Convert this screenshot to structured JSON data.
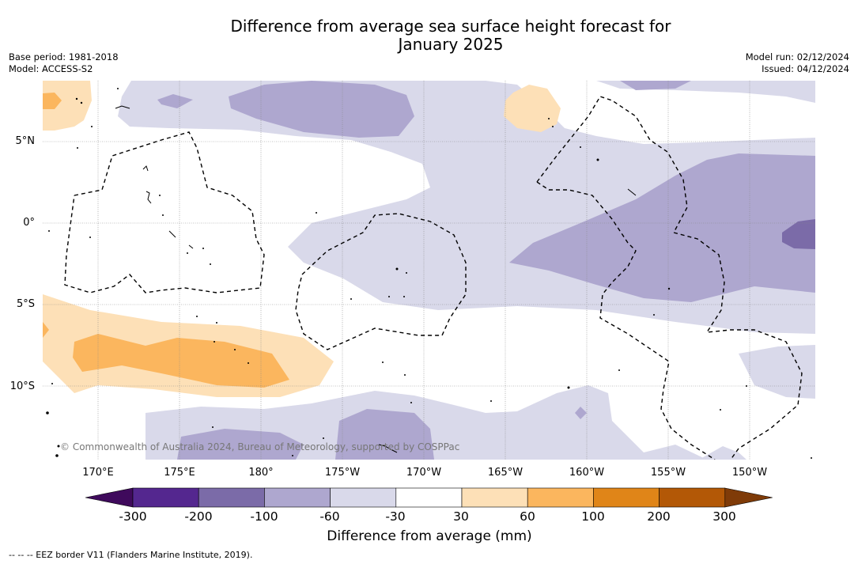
{
  "title": {
    "line1": "Difference from average sea surface height forecast for",
    "line2": "January 2025"
  },
  "meta": {
    "base_period": "Base period: 1981-2018",
    "model": "Model: ACCESS-S2",
    "model_run": "Model run: 02/12/2024",
    "issued": "Issued: 04/12/2024"
  },
  "axes": {
    "lat_labels": [
      "5°N",
      "0°",
      "5°S",
      "10°S"
    ],
    "lon_labels": [
      "170°E",
      "175°E",
      "180°",
      "175°W",
      "170°W",
      "165°W",
      "160°W",
      "155°W",
      "150°W"
    ]
  },
  "colorbar": {
    "ticks": [
      "-300",
      "-200",
      "-100",
      "-60",
      "-30",
      "30",
      "60",
      "100",
      "200",
      "300"
    ],
    "label": "Difference from average (mm)",
    "colors": [
      "#3f0a5c",
      "#54278f",
      "#7b6ba8",
      "#aea7cf",
      "#d9d9ea",
      "#ffffff",
      "#fde0b7",
      "#fbb65e",
      "#e08518",
      "#b35806",
      "#7f3b08"
    ]
  },
  "copyright": "© Commonwealth of Australia 2024, Bureau of Meteorology, supported by COSPPac",
  "footnote": "-- -- -- EEZ border V11 (Flanders Marine Institute, 2019)."
}
